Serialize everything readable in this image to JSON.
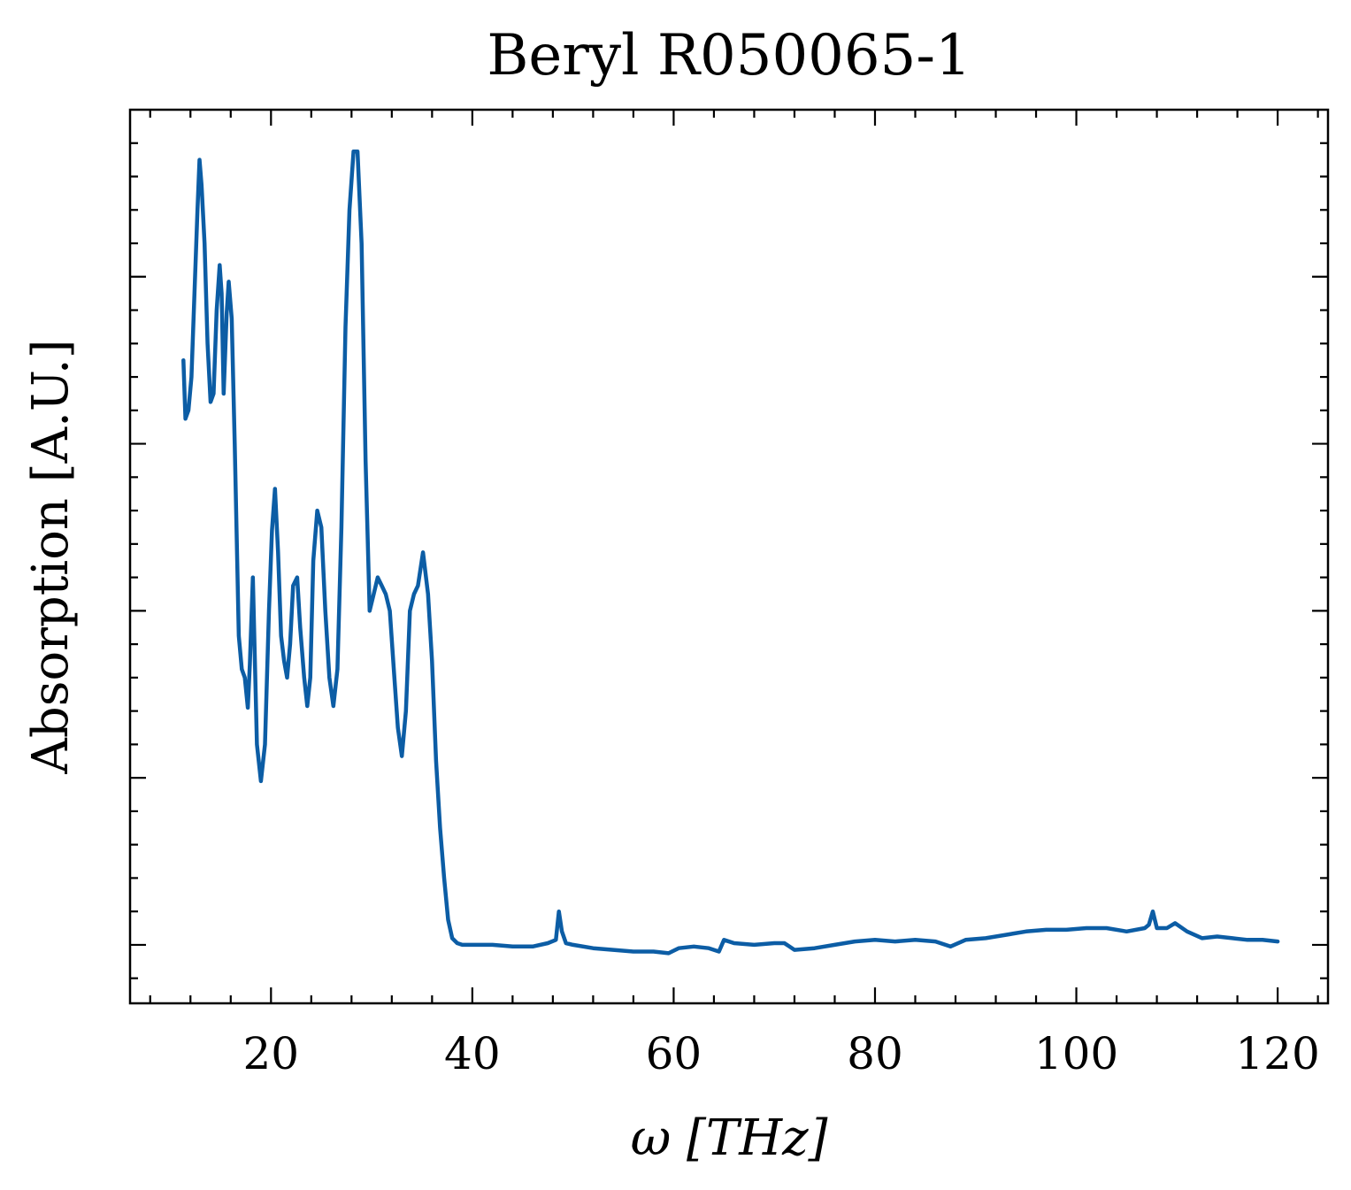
{
  "chart_data": {
    "type": "line",
    "title": "Beryl R050065-1",
    "xlabel": "ω [THz]",
    "ylabel": "Absorption [A.U.]",
    "xlim": [
      6,
      125
    ],
    "ylim": [
      -0.035,
      0.5
    ],
    "x_ticks": [
      20,
      40,
      60,
      80,
      100,
      120
    ],
    "x_minor_step": 4,
    "y_ticks": [
      0,
      0.1,
      0.2,
      0.3,
      0.4
    ],
    "y_tick_labels_shown": false,
    "y_minor_step": 0.02,
    "grid": false,
    "legend": "none",
    "series": [
      {
        "color": "#0C5DA5",
        "points": [
          [
            11.3,
            0.35
          ],
          [
            11.5,
            0.315
          ],
          [
            11.8,
            0.32
          ],
          [
            12.1,
            0.34
          ],
          [
            12.4,
            0.39
          ],
          [
            12.7,
            0.44
          ],
          [
            12.9,
            0.47
          ],
          [
            13.1,
            0.455
          ],
          [
            13.4,
            0.42
          ],
          [
            13.7,
            0.36
          ],
          [
            14.0,
            0.325
          ],
          [
            14.3,
            0.33
          ],
          [
            14.6,
            0.38
          ],
          [
            14.9,
            0.407
          ],
          [
            15.1,
            0.39
          ],
          [
            15.3,
            0.33
          ],
          [
            15.6,
            0.378
          ],
          [
            15.8,
            0.397
          ],
          [
            16.1,
            0.375
          ],
          [
            16.4,
            0.3
          ],
          [
            16.8,
            0.185
          ],
          [
            17.1,
            0.165
          ],
          [
            17.4,
            0.16
          ],
          [
            17.7,
            0.142
          ],
          [
            17.9,
            0.168
          ],
          [
            18.2,
            0.22
          ],
          [
            18.6,
            0.12
          ],
          [
            19.0,
            0.098
          ],
          [
            19.4,
            0.12
          ],
          [
            19.8,
            0.2
          ],
          [
            20.1,
            0.248
          ],
          [
            20.4,
            0.273
          ],
          [
            20.7,
            0.235
          ],
          [
            21.0,
            0.185
          ],
          [
            21.3,
            0.17
          ],
          [
            21.6,
            0.16
          ],
          [
            21.9,
            0.18
          ],
          [
            22.2,
            0.215
          ],
          [
            22.6,
            0.22
          ],
          [
            22.9,
            0.19
          ],
          [
            23.3,
            0.16
          ],
          [
            23.6,
            0.143
          ],
          [
            23.9,
            0.16
          ],
          [
            24.2,
            0.23
          ],
          [
            24.6,
            0.26
          ],
          [
            25.0,
            0.25
          ],
          [
            25.4,
            0.2
          ],
          [
            25.8,
            0.16
          ],
          [
            26.2,
            0.143
          ],
          [
            26.6,
            0.165
          ],
          [
            27.0,
            0.25
          ],
          [
            27.4,
            0.37
          ],
          [
            27.8,
            0.44
          ],
          [
            28.2,
            0.475
          ],
          [
            28.6,
            0.475
          ],
          [
            29.0,
            0.42
          ],
          [
            29.4,
            0.29
          ],
          [
            29.8,
            0.2
          ],
          [
            30.2,
            0.21
          ],
          [
            30.6,
            0.22
          ],
          [
            31.0,
            0.215
          ],
          [
            31.4,
            0.21
          ],
          [
            31.8,
            0.2
          ],
          [
            32.2,
            0.165
          ],
          [
            32.6,
            0.13
          ],
          [
            33.0,
            0.113
          ],
          [
            33.4,
            0.14
          ],
          [
            33.8,
            0.2
          ],
          [
            34.2,
            0.21
          ],
          [
            34.6,
            0.215
          ],
          [
            35.1,
            0.235
          ],
          [
            35.6,
            0.21
          ],
          [
            36.0,
            0.17
          ],
          [
            36.4,
            0.11
          ],
          [
            36.8,
            0.07
          ],
          [
            37.2,
            0.04
          ],
          [
            37.6,
            0.015
          ],
          [
            38.0,
            0.004
          ],
          [
            38.5,
            0.001
          ],
          [
            39.0,
            0.0
          ],
          [
            40.0,
            0.0
          ],
          [
            42.0,
            0.0
          ],
          [
            44.0,
            -0.001
          ],
          [
            46.0,
            -0.001
          ],
          [
            47.5,
            0.001
          ],
          [
            48.3,
            0.003
          ],
          [
            48.6,
            0.02
          ],
          [
            48.9,
            0.008
          ],
          [
            49.3,
            0.001
          ],
          [
            50.0,
            0.0
          ],
          [
            52.0,
            -0.002
          ],
          [
            54.0,
            -0.003
          ],
          [
            56.0,
            -0.004
          ],
          [
            58.0,
            -0.004
          ],
          [
            59.5,
            -0.005
          ],
          [
            60.5,
            -0.002
          ],
          [
            62.0,
            -0.001
          ],
          [
            63.5,
            -0.002
          ],
          [
            64.5,
            -0.004
          ],
          [
            65.0,
            0.003
          ],
          [
            66.0,
            0.001
          ],
          [
            68.0,
            0.0
          ],
          [
            70.0,
            0.001
          ],
          [
            71.0,
            0.001
          ],
          [
            72.0,
            -0.003
          ],
          [
            74.0,
            -0.002
          ],
          [
            76.0,
            0.0
          ],
          [
            78.0,
            0.002
          ],
          [
            80.0,
            0.003
          ],
          [
            82.0,
            0.002
          ],
          [
            84.0,
            0.003
          ],
          [
            86.0,
            0.002
          ],
          [
            87.5,
            -0.001
          ],
          [
            89.0,
            0.003
          ],
          [
            91.0,
            0.004
          ],
          [
            93.0,
            0.006
          ],
          [
            95.0,
            0.008
          ],
          [
            97.0,
            0.009
          ],
          [
            99.0,
            0.009
          ],
          [
            101.0,
            0.01
          ],
          [
            103.0,
            0.01
          ],
          [
            105.0,
            0.008
          ],
          [
            106.8,
            0.01
          ],
          [
            107.2,
            0.012
          ],
          [
            107.6,
            0.02
          ],
          [
            108.0,
            0.01
          ],
          [
            109.0,
            0.01
          ],
          [
            109.8,
            0.013
          ],
          [
            111.0,
            0.008
          ],
          [
            112.5,
            0.004
          ],
          [
            114.0,
            0.005
          ],
          [
            115.5,
            0.004
          ],
          [
            117.0,
            0.003
          ],
          [
            118.5,
            0.003
          ],
          [
            120.0,
            0.002
          ]
        ]
      }
    ]
  }
}
